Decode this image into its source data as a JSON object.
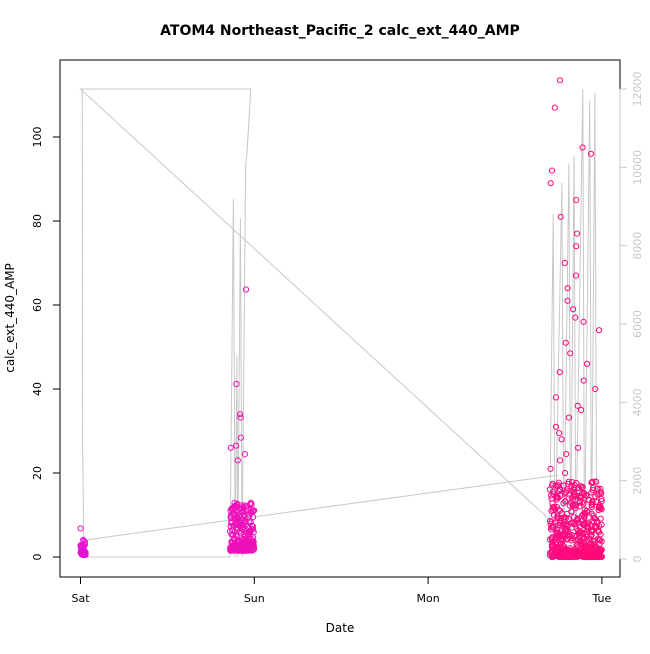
{
  "chart_data": {
    "type": "scatter",
    "title": "ATOM4 Northeast_Pacific_2 calc_ext_440_AMP",
    "xlabel": "Date",
    "ylabel": "calc_ext_440_AMP",
    "x_axis": {
      "kind": "date",
      "ticks": [
        {
          "value": "Sat",
          "label": "Sat"
        },
        {
          "value": "Sun",
          "label": "Sun"
        },
        {
          "value": "Mon",
          "label": "Mon"
        },
        {
          "value": "Tue",
          "label": "Tue"
        }
      ]
    },
    "y_left": {
      "ticks": [
        0,
        20,
        40,
        60,
        80,
        100
      ],
      "range": [
        0,
        113.5
      ]
    },
    "y_right": {
      "ticks": [
        0,
        2000,
        4000,
        6000,
        8000,
        10000,
        12000
      ],
      "range": [
        0,
        12100
      ],
      "color": "#c8c8c8"
    },
    "grid": false,
    "legend": "none",
    "colors": {
      "points_magenta": "#e614d6",
      "points_pink": "#ff0a78",
      "secondary_line": "#c8c8c8",
      "axis": "#000000"
    },
    "series": [
      {
        "type": "scatter",
        "axis": "left",
        "color_range": [
          "#e614d6",
          "#ff0a78"
        ],
        "clusters": [
          {
            "day_start": 0.0,
            "day_end": 0.03,
            "y_min": 0.5,
            "y_max": 4.5,
            "outliers": [
              6.8
            ]
          },
          {
            "day_start": 0.86,
            "day_end": 1.0,
            "y_min": 1.5,
            "y_max": 13,
            "outliers": [
              63.7,
              41.2,
              34,
              33.2,
              28.4,
              26.5,
              26,
              24.5,
              23
            ]
          },
          {
            "day_start": 2.7,
            "day_end": 3.0,
            "y_min": 0,
            "y_max": 18,
            "outliers": [
              113.5,
              107,
              97.5,
              96,
              92,
              89,
              85,
              81,
              77,
              74,
              70,
              67,
              64,
              61,
              59,
              57,
              56,
              54,
              51,
              48.5,
              46,
              44,
              42,
              40,
              38,
              36,
              35,
              33.2,
              31,
              29.5,
              28,
              26,
              24.5,
              23,
              21,
              20
            ]
          }
        ]
      },
      {
        "type": "line",
        "axis": "right",
        "color": "#c8c8c8",
        "points": [
          [
            0.0,
            12000
          ],
          [
            0.01,
            12000
          ],
          [
            0.012,
            2900
          ],
          [
            0.02,
            50
          ],
          [
            0.86,
            50
          ],
          [
            0.88,
            9200
          ],
          [
            0.89,
            50
          ],
          [
            0.9,
            5200
          ],
          [
            0.905,
            50
          ],
          [
            0.92,
            8700
          ],
          [
            0.93,
            50
          ],
          [
            0.95,
            10000
          ],
          [
            0.96,
            10500
          ],
          [
            0.98,
            12000
          ],
          [
            0.0,
            12000
          ],
          [
            2.7,
            1000
          ],
          [
            2.72,
            8800
          ],
          [
            2.73,
            100
          ],
          [
            2.77,
            9600
          ],
          [
            2.78,
            100
          ],
          [
            2.81,
            10100
          ],
          [
            2.82,
            100
          ],
          [
            2.84,
            10300
          ],
          [
            2.85,
            100
          ],
          [
            2.89,
            12000
          ],
          [
            2.9,
            100
          ],
          [
            2.93,
            11700
          ],
          [
            2.94,
            200
          ],
          [
            2.96,
            11900
          ],
          [
            2.97,
            100
          ]
        ]
      },
      {
        "type": "line",
        "axis": "left",
        "color": "#c8c8c8",
        "points": [
          [
            0.02,
            4
          ],
          [
            2.75,
            19.5
          ]
        ]
      }
    ]
  }
}
